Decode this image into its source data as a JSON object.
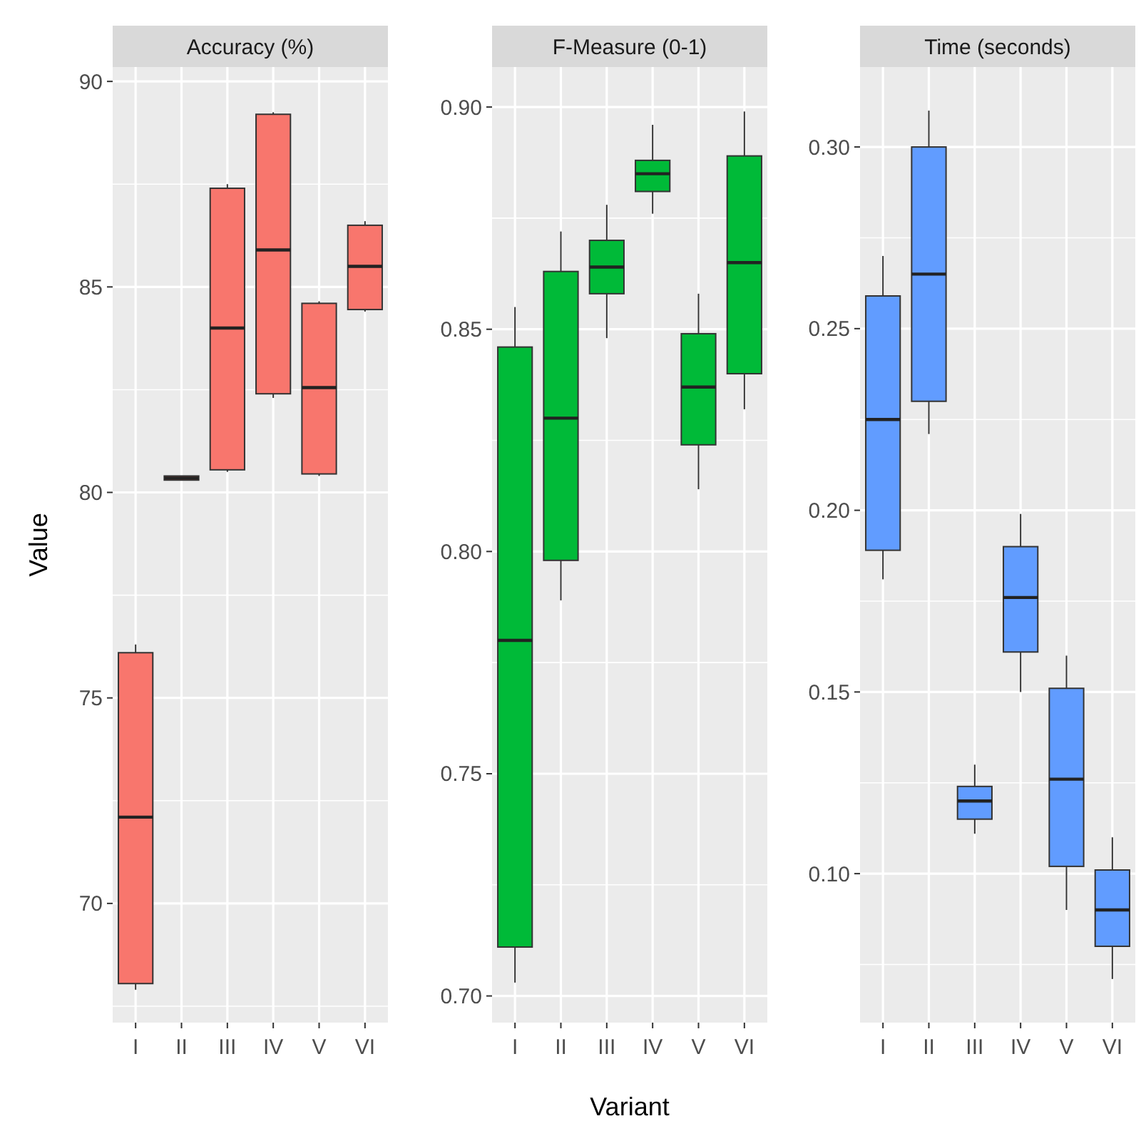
{
  "chart_data": [
    {
      "type": "box",
      "title": "Accuracy (%)",
      "ylabel": "Value",
      "categories": [
        "I",
        "II",
        "III",
        "IV",
        "V",
        "VI"
      ],
      "color": "#f8766d",
      "ylim": [
        67.1,
        90.35
      ],
      "yticks": [
        70,
        75,
        80,
        85,
        90
      ],
      "grid": true,
      "boxes": [
        {
          "low": 67.9,
          "q1": 68.05,
          "median": 72.1,
          "q3": 76.1,
          "high": 76.3
        },
        {
          "low": 80.3,
          "q1": 80.3,
          "median": 80.35,
          "q3": 80.4,
          "high": 80.4
        },
        {
          "low": 80.5,
          "q1": 80.55,
          "median": 84.0,
          "q3": 87.4,
          "high": 87.5
        },
        {
          "low": 82.3,
          "q1": 82.4,
          "median": 85.9,
          "q3": 89.2,
          "high": 89.25
        },
        {
          "low": 80.4,
          "q1": 80.45,
          "median": 82.55,
          "q3": 84.6,
          "high": 84.65
        },
        {
          "low": 84.4,
          "q1": 84.45,
          "median": 85.5,
          "q3": 86.5,
          "high": 86.6
        }
      ]
    },
    {
      "type": "box",
      "title": "F-Measure (0-1)",
      "xlabel": "Variant",
      "categories": [
        "I",
        "II",
        "III",
        "IV",
        "V",
        "VI"
      ],
      "color": "#00ba38",
      "ylim": [
        0.694,
        0.909
      ],
      "yticks": [
        {
          "value": 0.7,
          "label": "0.70"
        },
        {
          "value": 0.75,
          "label": "0.75"
        },
        {
          "value": 0.8,
          "label": "0.80"
        },
        {
          "value": 0.85,
          "label": "0.85"
        },
        {
          "value": 0.9,
          "label": "0.90"
        }
      ],
      "grid": true,
      "boxes": [
        {
          "low": 0.703,
          "q1": 0.711,
          "median": 0.78,
          "q3": 0.846,
          "high": 0.855
        },
        {
          "low": 0.789,
          "q1": 0.798,
          "median": 0.83,
          "q3": 0.863,
          "high": 0.872
        },
        {
          "low": 0.848,
          "q1": 0.858,
          "median": 0.864,
          "q3": 0.87,
          "high": 0.878
        },
        {
          "low": 0.876,
          "q1": 0.881,
          "median": 0.885,
          "q3": 0.888,
          "high": 0.896
        },
        {
          "low": 0.814,
          "q1": 0.824,
          "median": 0.837,
          "q3": 0.849,
          "high": 0.858
        },
        {
          "low": 0.832,
          "q1": 0.84,
          "median": 0.865,
          "q3": 0.889,
          "high": 0.899
        }
      ]
    },
    {
      "type": "box",
      "title": "Time (seconds)",
      "categories": [
        "I",
        "II",
        "III",
        "IV",
        "V",
        "VI"
      ],
      "color": "#619cff",
      "ylim": [
        0.059,
        0.322
      ],
      "yticks": [
        {
          "value": 0.1,
          "label": "0.10"
        },
        {
          "value": 0.15,
          "label": "0.15"
        },
        {
          "value": 0.2,
          "label": "0.20"
        },
        {
          "value": 0.25,
          "label": "0.25"
        },
        {
          "value": 0.3,
          "label": "0.30"
        }
      ],
      "grid": true,
      "boxes": [
        {
          "low": 0.181,
          "q1": 0.189,
          "median": 0.225,
          "q3": 0.259,
          "high": 0.27
        },
        {
          "low": 0.221,
          "q1": 0.23,
          "median": 0.265,
          "q3": 0.3,
          "high": 0.31
        },
        {
          "low": 0.111,
          "q1": 0.115,
          "median": 0.12,
          "q3": 0.124,
          "high": 0.13
        },
        {
          "low": 0.15,
          "q1": 0.161,
          "median": 0.176,
          "q3": 0.19,
          "high": 0.199
        },
        {
          "low": 0.09,
          "q1": 0.102,
          "median": 0.126,
          "q3": 0.151,
          "high": 0.16
        },
        {
          "low": 0.071,
          "q1": 0.08,
          "median": 0.09,
          "q3": 0.101,
          "high": 0.11
        }
      ]
    }
  ]
}
